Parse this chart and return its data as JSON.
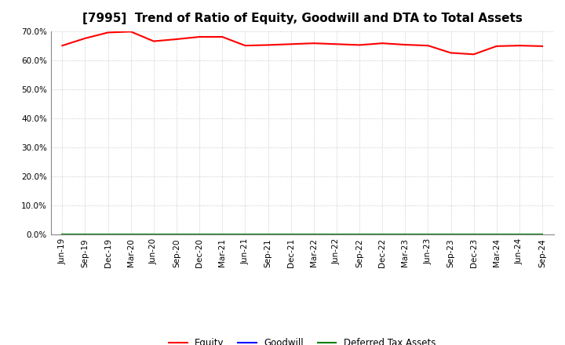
{
  "title": "[7995]  Trend of Ratio of Equity, Goodwill and DTA to Total Assets",
  "x_labels": [
    "Jun-19",
    "Sep-19",
    "Dec-19",
    "Mar-20",
    "Jun-20",
    "Sep-20",
    "Dec-20",
    "Mar-21",
    "Jun-21",
    "Sep-21",
    "Dec-21",
    "Mar-22",
    "Jun-22",
    "Sep-22",
    "Dec-22",
    "Mar-23",
    "Jun-23",
    "Sep-23",
    "Dec-23",
    "Mar-24",
    "Jun-24",
    "Sep-24"
  ],
  "equity": [
    65.0,
    67.5,
    69.5,
    69.8,
    66.5,
    67.2,
    68.0,
    68.0,
    65.0,
    65.2,
    65.5,
    65.8,
    65.5,
    65.2,
    65.8,
    65.3,
    65.0,
    62.5,
    62.0,
    64.8,
    65.0,
    64.8
  ],
  "goodwill": [
    0,
    0,
    0,
    0,
    0,
    0,
    0,
    0,
    0,
    0,
    0,
    0,
    0,
    0,
    0,
    0,
    0,
    0,
    0,
    0,
    0,
    0
  ],
  "dta": [
    0,
    0,
    0,
    0,
    0,
    0,
    0,
    0,
    0,
    0,
    0,
    0,
    0,
    0,
    0,
    0,
    0,
    0,
    0,
    0,
    0,
    0
  ],
  "equity_color": "#FF0000",
  "goodwill_color": "#0000FF",
  "dta_color": "#008000",
  "ylim": [
    0,
    70
  ],
  "yticks": [
    0,
    10,
    20,
    30,
    40,
    50,
    60,
    70
  ],
  "background_color": "#FFFFFF",
  "grid_color": "#BBBBBB",
  "title_fontsize": 11,
  "tick_fontsize": 7.5,
  "legend_fontsize": 8.5
}
